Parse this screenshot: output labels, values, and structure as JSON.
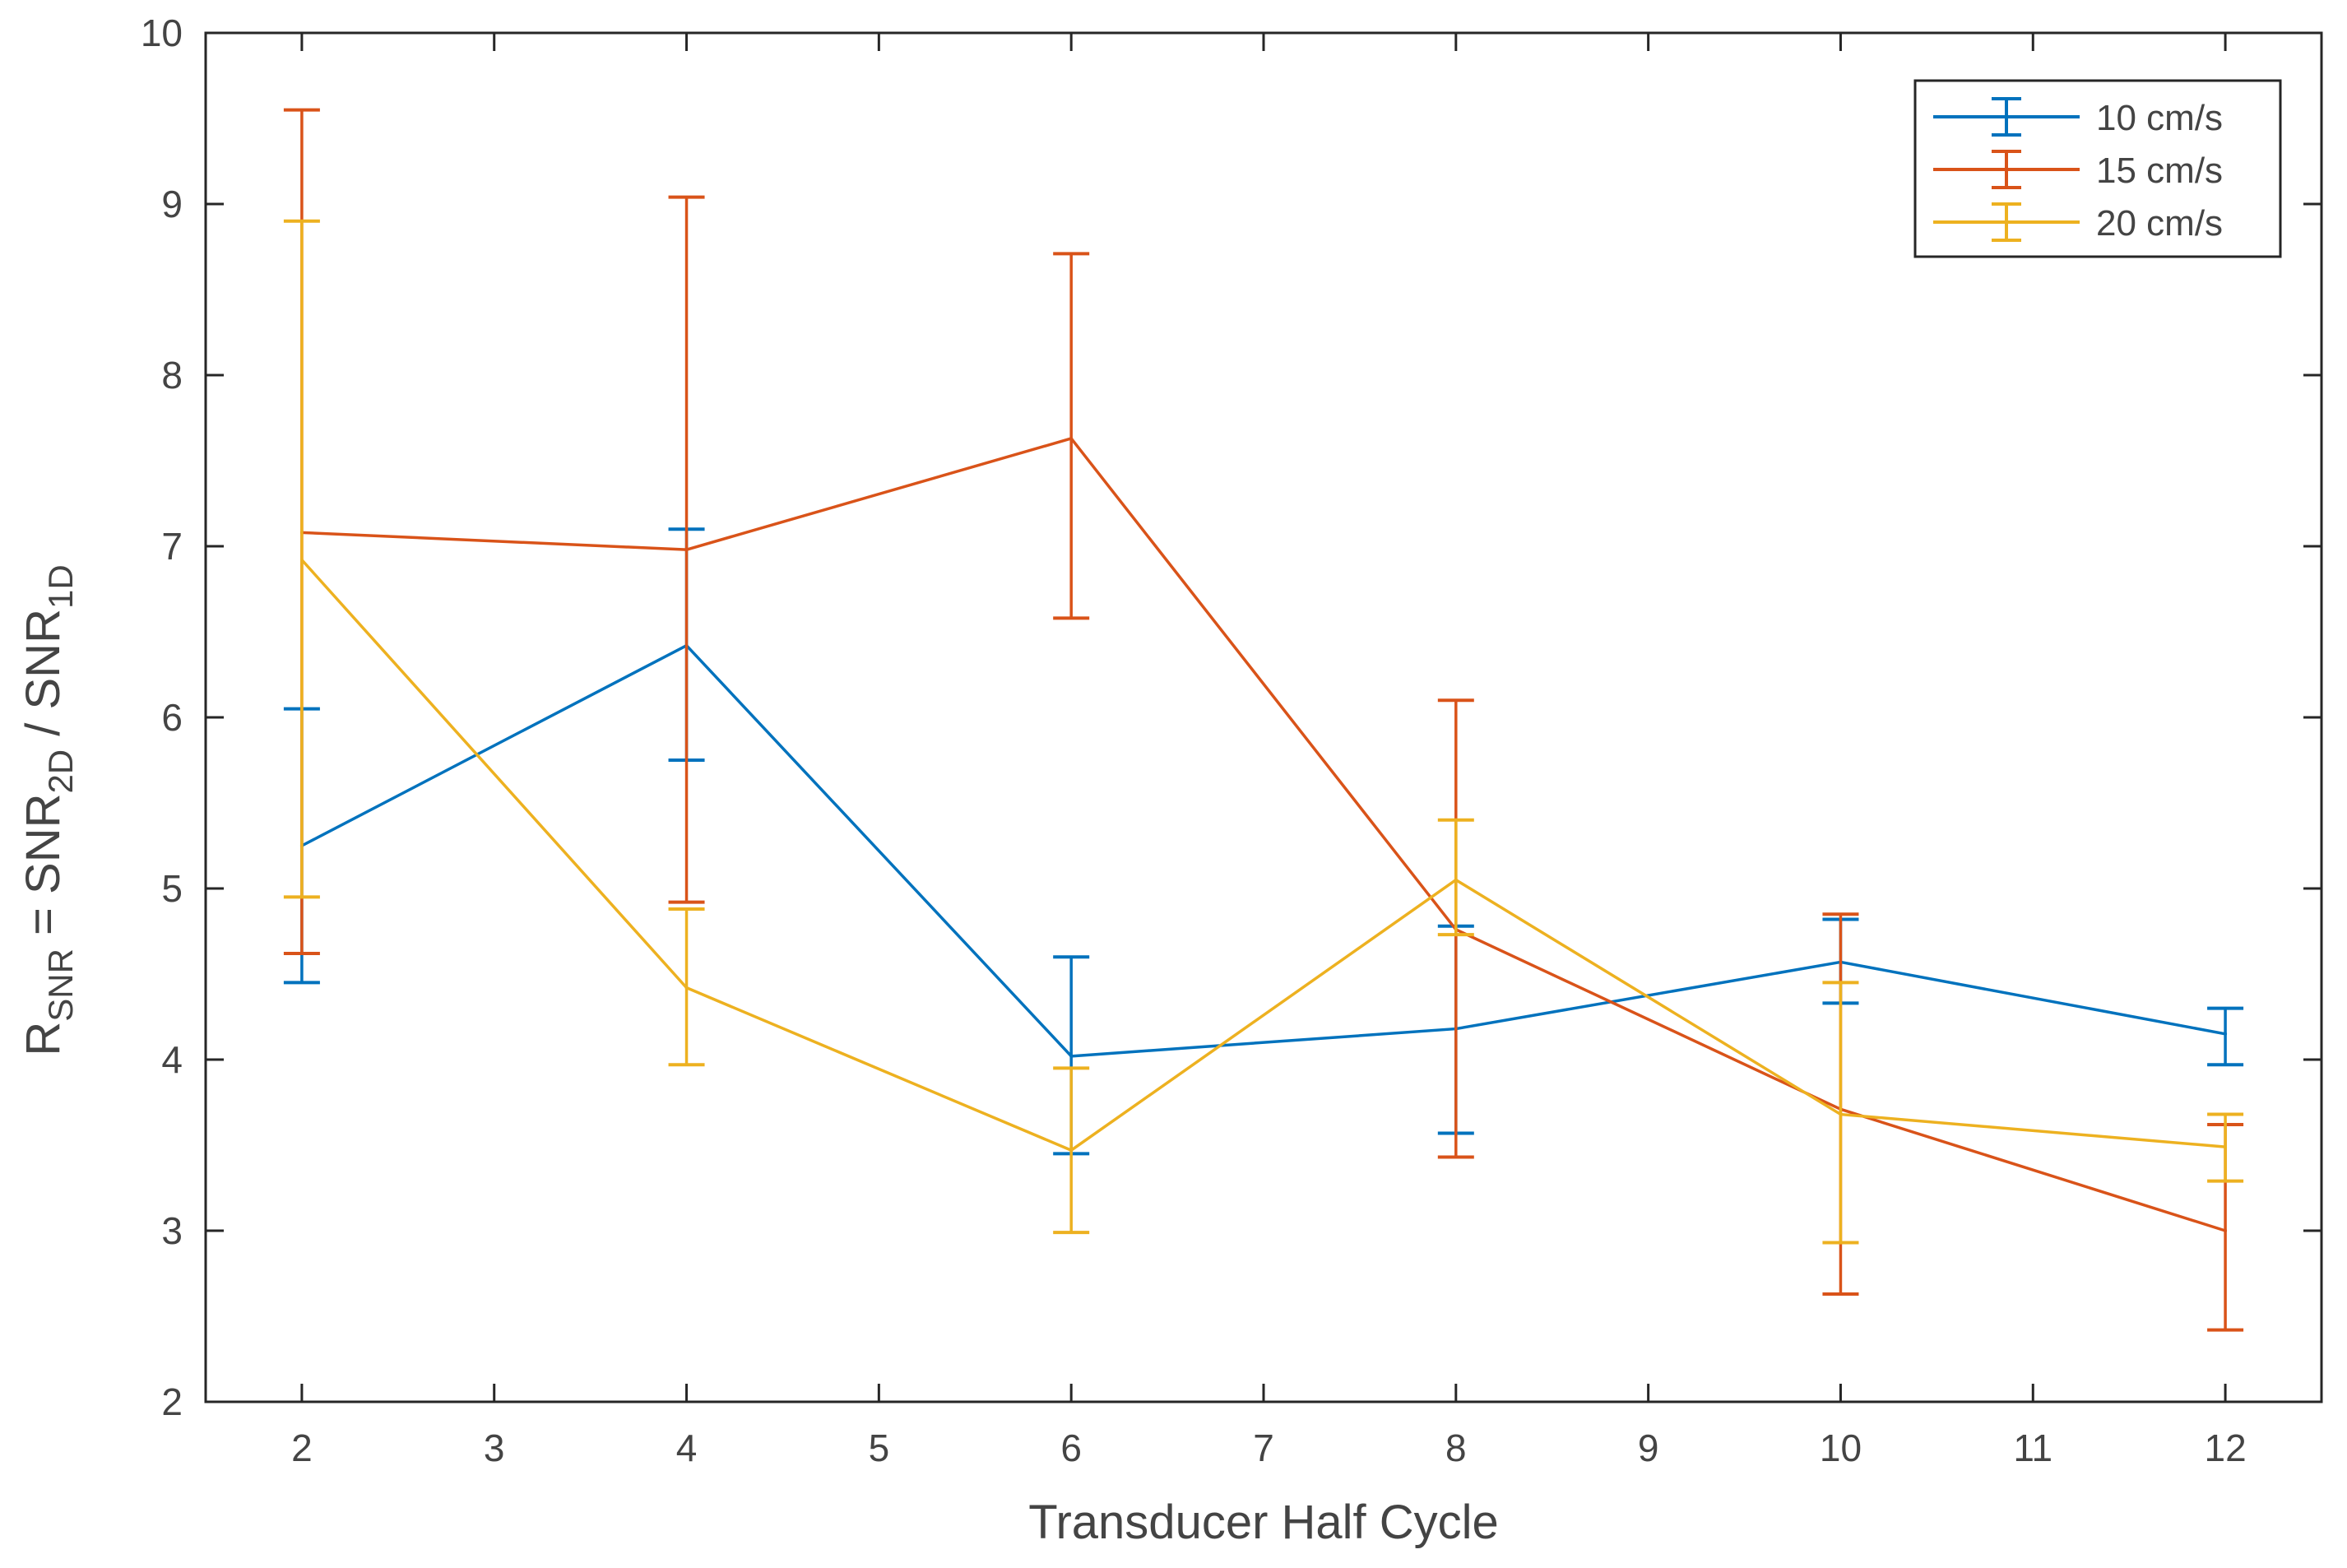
{
  "chart_data": {
    "type": "line",
    "title": "",
    "xlabel": "Transducer Half Cycle",
    "ylabel": {
      "main": "R",
      "main_sub": "SNR",
      "eq": " = SNR",
      "num_sub": "2D",
      "slash": " / SNR",
      "den_sub": "1D"
    },
    "xlim": [
      1.5,
      12.5
    ],
    "ylim": [
      2,
      10
    ],
    "xticks": [
      "2",
      "3",
      "4",
      "5",
      "6",
      "7",
      "8",
      "9",
      "10",
      "11",
      "12"
    ],
    "yticks": [
      "2",
      "3",
      "4",
      "5",
      "6",
      "7",
      "8",
      "9",
      "10"
    ],
    "grid": false,
    "legend_position": "top-right",
    "x": [
      2,
      4,
      6,
      8,
      10,
      12
    ],
    "series": [
      {
        "name": "10 cm/s",
        "color": "#0072BD",
        "values": [
          5.25,
          6.42,
          4.02,
          4.18,
          4.57,
          4.15
        ],
        "lower": [
          4.45,
          5.75,
          3.45,
          3.57,
          4.33,
          3.97
        ],
        "upper": [
          6.05,
          7.1,
          4.6,
          4.78,
          4.82,
          4.3
        ]
      },
      {
        "name": "15 cm/s",
        "color": "#D95319",
        "values": [
          7.08,
          6.98,
          7.63,
          4.76,
          3.71,
          3.0
        ],
        "lower": [
          4.62,
          4.92,
          6.58,
          3.43,
          2.63,
          2.42
        ],
        "upper": [
          9.55,
          9.04,
          8.71,
          6.1,
          4.85,
          3.62
        ]
      },
      {
        "name": "20 cm/s",
        "color": "#EDB120",
        "values": [
          6.92,
          4.42,
          3.47,
          5.05,
          3.68,
          3.49
        ],
        "lower": [
          4.95,
          3.97,
          2.99,
          4.73,
          2.93,
          3.29
        ],
        "upper": [
          8.9,
          4.88,
          3.95,
          5.4,
          4.45,
          3.68
        ]
      }
    ]
  }
}
